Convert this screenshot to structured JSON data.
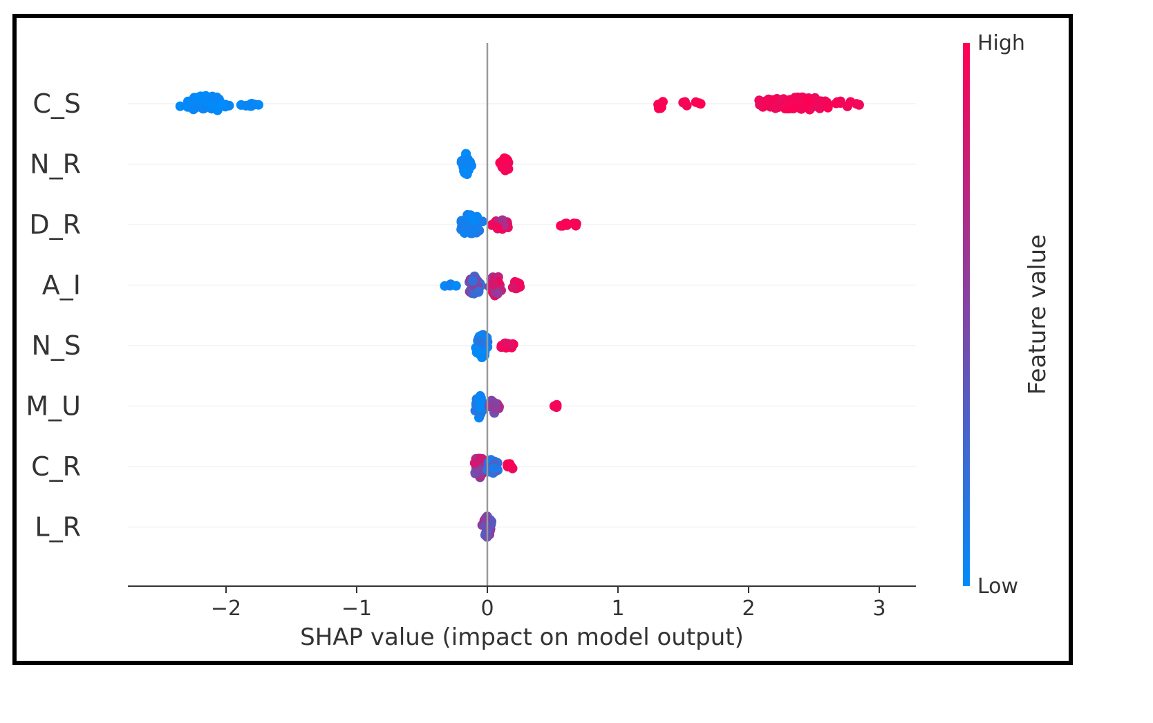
{
  "chart_data": {
    "type": "scatter",
    "subtype": "shap-beeswarm",
    "title": "",
    "xlabel": "SHAP value (impact on model output)",
    "ylabel": "",
    "xlim": [
      -2.75,
      3.25
    ],
    "xticks": [
      -2,
      -1,
      0,
      1,
      2,
      3
    ],
    "xtick_labels": [
      "−2",
      "−1",
      "0",
      "1",
      "2",
      "3"
    ],
    "features": [
      {
        "name": "C_S",
        "clusters": [
          {
            "from": -2.5,
            "to": -1.9,
            "center": -2.15,
            "spread": 0.42,
            "color_low": 0.0,
            "color_high": 0.05,
            "count": 90
          },
          {
            "from": -1.95,
            "to": -1.65,
            "center": -1.8,
            "spread": 0.15,
            "color_low": 0.0,
            "color_high": 0.05,
            "count": 8
          },
          {
            "from": 1.25,
            "to": 1.4,
            "center": 1.32,
            "spread": 0.25,
            "color_low": 0.95,
            "color_high": 1.0,
            "count": 8
          },
          {
            "from": 1.4,
            "to": 1.75,
            "center": 1.55,
            "spread": 0.12,
            "color_low": 0.95,
            "color_high": 1.0,
            "count": 6
          },
          {
            "from": 1.75,
            "to": 3.0,
            "center": 2.4,
            "spread": 0.32,
            "color_low": 0.92,
            "color_high": 1.0,
            "count": 110
          }
        ]
      },
      {
        "name": "N_R",
        "clusters": [
          {
            "from": -0.2,
            "to": -0.1,
            "center": -0.16,
            "spread": 0.55,
            "color_low": 0.0,
            "color_high": 0.06,
            "count": 36
          },
          {
            "from": 0.08,
            "to": 0.2,
            "center": 0.14,
            "spread": 0.35,
            "color_low": 0.94,
            "color_high": 1.0,
            "count": 30
          }
        ]
      },
      {
        "name": "D_R",
        "clusters": [
          {
            "from": -0.2,
            "to": 0.1,
            "center": -0.13,
            "spread": 0.55,
            "color_low": 0.0,
            "color_high": 0.15,
            "count": 50
          },
          {
            "from": 0.0,
            "to": 0.22,
            "center": 0.1,
            "spread": 0.25,
            "color_low": 0.6,
            "color_high": 1.0,
            "count": 24
          },
          {
            "from": 0.35,
            "to": 0.85,
            "center": 0.6,
            "spread": 0.08,
            "color_low": 0.95,
            "color_high": 1.0,
            "count": 10
          }
        ]
      },
      {
        "name": "A_I",
        "clusters": [
          {
            "from": -0.35,
            "to": -0.2,
            "center": -0.28,
            "spread": 0.1,
            "color_low": 0.0,
            "color_high": 0.2,
            "count": 4
          },
          {
            "from": -0.18,
            "to": 0.0,
            "center": -0.1,
            "spread": 0.5,
            "color_low": 0.1,
            "color_high": 0.55,
            "count": 30
          },
          {
            "from": 0.0,
            "to": 0.15,
            "center": 0.06,
            "spread": 0.55,
            "color_low": 0.55,
            "color_high": 0.95,
            "count": 40
          },
          {
            "from": 0.15,
            "to": 0.28,
            "center": 0.22,
            "spread": 0.18,
            "color_low": 0.85,
            "color_high": 1.0,
            "count": 10
          }
        ]
      },
      {
        "name": "N_S",
        "clusters": [
          {
            "from": -0.12,
            "to": 0.06,
            "center": -0.04,
            "spread": 0.6,
            "color_low": 0.0,
            "color_high": 0.15,
            "count": 60
          },
          {
            "from": 0.06,
            "to": 0.3,
            "center": 0.15,
            "spread": 0.15,
            "color_low": 0.85,
            "color_high": 1.0,
            "count": 14
          }
        ]
      },
      {
        "name": "M_U",
        "clusters": [
          {
            "from": -0.1,
            "to": 0.0,
            "center": -0.06,
            "spread": 0.6,
            "color_low": 0.0,
            "color_high": 0.15,
            "count": 40
          },
          {
            "from": 0.0,
            "to": 0.12,
            "center": 0.05,
            "spread": 0.35,
            "color_low": 0.4,
            "color_high": 0.8,
            "count": 22
          },
          {
            "from": 0.48,
            "to": 0.56,
            "center": 0.52,
            "spread": 0.1,
            "color_low": 0.95,
            "color_high": 1.0,
            "count": 5
          }
        ]
      },
      {
        "name": "C_R",
        "clusters": [
          {
            "from": -0.15,
            "to": 0.0,
            "center": -0.06,
            "spread": 0.55,
            "color_low": 0.4,
            "color_high": 0.9,
            "count": 40
          },
          {
            "from": 0.0,
            "to": 0.12,
            "center": 0.04,
            "spread": 0.4,
            "color_low": 0.05,
            "color_high": 0.35,
            "count": 26
          },
          {
            "from": 0.12,
            "to": 0.2,
            "center": 0.17,
            "spread": 0.2,
            "color_low": 0.9,
            "color_high": 1.0,
            "count": 8
          }
        ]
      },
      {
        "name": "L_R",
        "clusters": [
          {
            "from": -0.05,
            "to": 0.06,
            "center": 0.0,
            "spread": 0.55,
            "color_low": 0.25,
            "color_high": 0.8,
            "count": 44
          }
        ]
      }
    ],
    "colorbar": {
      "label": "Feature value",
      "high_label": "High",
      "low_label": "Low",
      "low_color": "#008bfb",
      "high_color": "#ff0052"
    }
  }
}
